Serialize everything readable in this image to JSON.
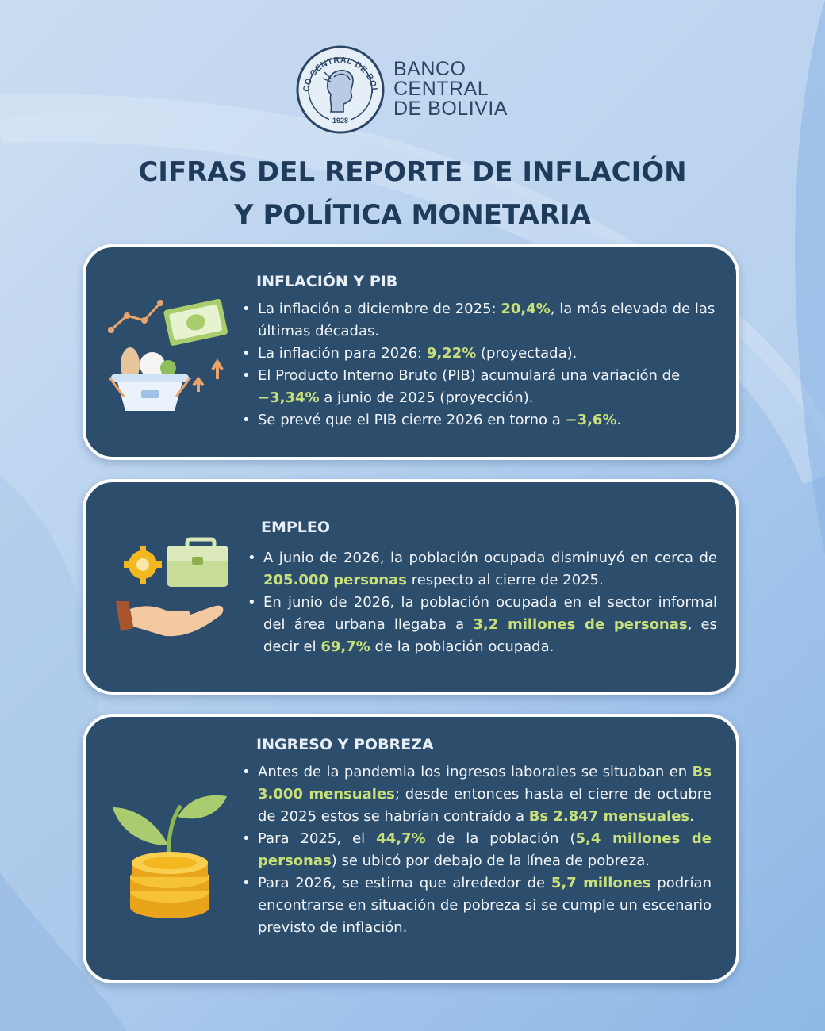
{
  "header": {
    "seal": {
      "ring_text": "BANCO CENTRAL DE BOLIVIA",
      "year": "1928"
    },
    "bank_name_lines": [
      "BANCO",
      "CENTRAL",
      "DE BOLIVIA"
    ]
  },
  "title_lines": [
    "CIFRAS DEL REPORTE DE INFLACIÓN",
    "Y POLÍTICA MONETARIA"
  ],
  "colors": {
    "card_bg": "#2d4d6d",
    "highlight": "#c8e07a",
    "title": "#1f3b5c"
  },
  "sections": [
    {
      "heading": "INFLACIÓN Y PIB",
      "icon": "shopping-basket-money-icon",
      "bullets": [
        [
          {
            "t": "La inflación a diciembre de 2025: "
          },
          {
            "t": "20,4%",
            "hl": true
          },
          {
            "t": ", la más elevada de las últimas décadas."
          }
        ],
        [
          {
            "t": "La inflación para 2026: "
          },
          {
            "t": "9,22%",
            "hl": true
          },
          {
            "t": " (proyectada)."
          }
        ],
        [
          {
            "t": "El Producto Interno Bruto (PIB) acumulará una variación de "
          },
          {
            "t": "−3,34%",
            "hl": true
          },
          {
            "t": " a junio de 2025 (proyección)."
          }
        ],
        [
          {
            "t": "Se prevé que el PIB cierre 2026 en torno a "
          },
          {
            "t": "−3,6%",
            "hl": true
          },
          {
            "t": "."
          }
        ]
      ]
    },
    {
      "heading": "EMPLEO",
      "icon": "briefcase-hand-icon",
      "bullets": [
        [
          {
            "t": "A junio de 2026, la población ocupada disminuyó en cerca de "
          },
          {
            "t": "205.000 personas",
            "hl": true
          },
          {
            "t": " respecto al cierre de 2025."
          }
        ],
        [
          {
            "t": "En junio de 2026, la población ocupada en el sector informal del área urbana llegaba a "
          },
          {
            "t": "3,2 millones de personas",
            "hl": true
          },
          {
            "t": ", es decir el "
          },
          {
            "t": "69,7%",
            "hl": true
          },
          {
            "t": " de la población ocupada."
          }
        ]
      ]
    },
    {
      "heading": "INGRESO Y POBREZA",
      "icon": "coins-sprout-icon",
      "bullets": [
        [
          {
            "t": "Antes de la pandemia los ingresos laborales se situaban en "
          },
          {
            "t": "Bs 3.000 mensuales",
            "hl": true
          },
          {
            "t": "; desde entonces hasta el cierre de octubre de 2025 estos se habrían contraído a "
          },
          {
            "t": "Bs 2.847 mensuales",
            "hl": true
          },
          {
            "t": "."
          }
        ],
        [
          {
            "t": "Para 2025, el "
          },
          {
            "t": "44,7%",
            "hl": true
          },
          {
            "t": " de la población ("
          },
          {
            "t": "5,4 millones de personas",
            "hl": true
          },
          {
            "t": ") se ubicó por debajo de la línea de pobreza."
          }
        ],
        [
          {
            "t": "Para 2026, se estima que alrededor de "
          },
          {
            "t": "5,7 millones",
            "hl": true
          },
          {
            "t": " podrían encontrarse en situación de pobreza si se cumple un escenario previsto de inflación."
          }
        ]
      ]
    }
  ]
}
